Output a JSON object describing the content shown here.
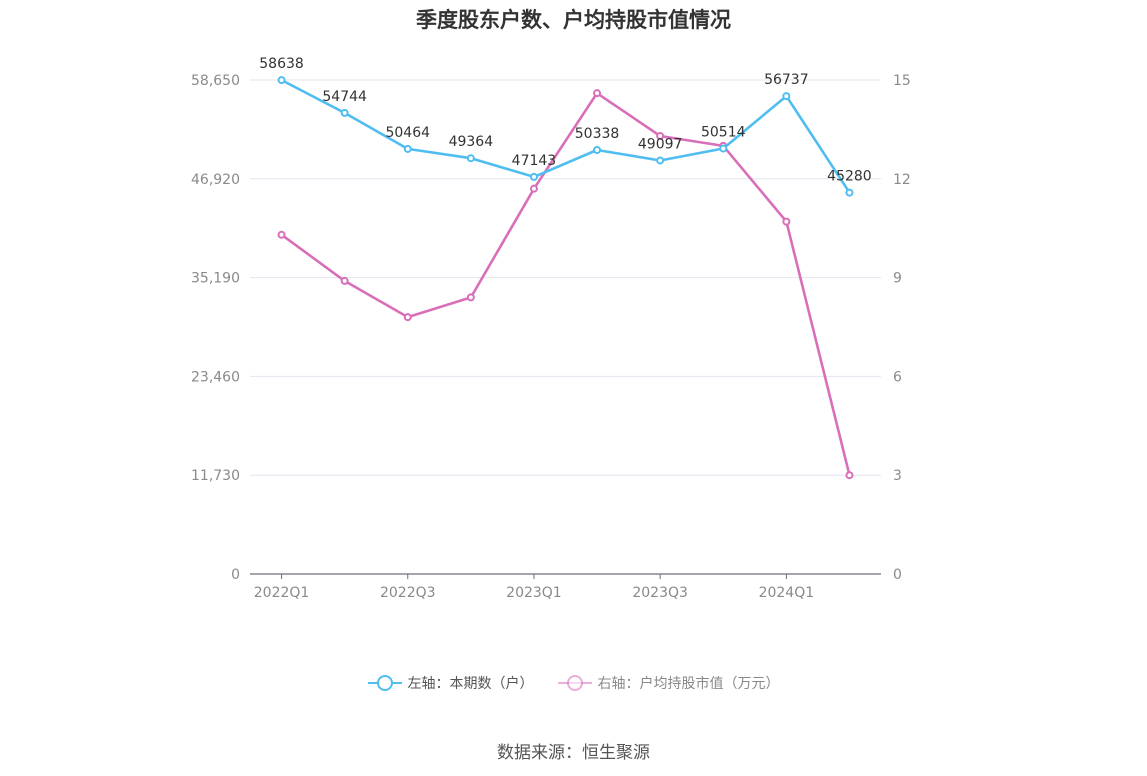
{
  "title": "季度股东户数、户均持股市值情况",
  "source": "数据来源：恒生聚源",
  "legend": [
    {
      "label": "左轴：本期数（户）",
      "color": "#4fbdf0",
      "text_color": "#555555"
    },
    {
      "label": "右轴：户均持股市值（万元）",
      "color": "#d86fb8",
      "text_color": "#888888"
    }
  ],
  "chart_data": {
    "type": "line",
    "categories": [
      "2022Q1",
      "2022Q2",
      "2022Q3",
      "2022Q4",
      "2023Q1",
      "2023Q2",
      "2023Q3",
      "2023Q4",
      "2024Q1",
      "2024Q2"
    ],
    "x_tick_labels": [
      "2022Q1",
      "",
      "2022Q3",
      "",
      "2023Q1",
      "",
      "2023Q3",
      "",
      "2024Q1",
      ""
    ],
    "left_axis": {
      "ticks": [
        "0",
        "11,730",
        "23,460",
        "35,190",
        "46,920",
        "58,650"
      ],
      "ylim": [
        0,
        58650
      ]
    },
    "right_axis": {
      "ticks": [
        "0",
        "3",
        "6",
        "9",
        "12",
        "15"
      ],
      "ylim": [
        0,
        15
      ]
    },
    "grid": true,
    "series": [
      {
        "name": "左轴：本期数（户）",
        "axis": "left",
        "color": "#4fbdf0",
        "values": [
          58638,
          54744,
          50464,
          49364,
          47143,
          50338,
          49097,
          50514,
          56737,
          45280
        ],
        "labels": [
          "58638",
          "54744",
          "50464",
          "49364",
          "47143",
          "50338",
          "49097",
          "50514",
          "56737",
          "45280"
        ]
      },
      {
        "name": "右轴：户均持股市值（万元）",
        "axis": "right",
        "color": "#d86fb8",
        "values": [
          10.3,
          8.9,
          7.8,
          8.4,
          11.7,
          14.6,
          13.3,
          13.0,
          10.7,
          3.0
        ]
      }
    ]
  }
}
